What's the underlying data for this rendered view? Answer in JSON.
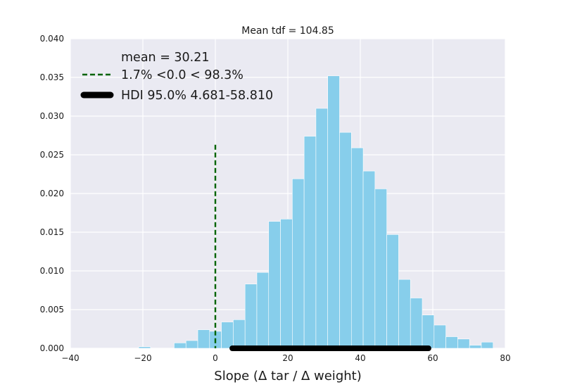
{
  "chart_data": {
    "type": "bar",
    "title": "Mean tdf = 104.85",
    "xlabel": "Slope (Δ tar  / Δ weight)",
    "ylabel": "",
    "xlim": [
      -40,
      80
    ],
    "ylim": [
      0,
      0.04
    ],
    "xticks": [
      "−40",
      "−20",
      "0",
      "20",
      "40",
      "60",
      "80"
    ],
    "xtick_values": [
      -40,
      -20,
      0,
      20,
      40,
      60,
      80
    ],
    "yticks": [
      "0.000",
      "0.005",
      "0.010",
      "0.015",
      "0.020",
      "0.025",
      "0.030",
      "0.035",
      "0.040"
    ],
    "ytick_values": [
      0,
      0.005,
      0.01,
      0.015,
      0.02,
      0.025,
      0.03,
      0.035,
      0.04
    ],
    "grid": true,
    "bin_width": 3.26,
    "bins": [
      {
        "x0": -21.15,
        "value": 0.0002
      },
      {
        "x0": -11.37,
        "value": 0.0007
      },
      {
        "x0": -8.11,
        "value": 0.001
      },
      {
        "x0": -4.85,
        "value": 0.0024
      },
      {
        "x0": -1.59,
        "value": 0.0022
      },
      {
        "x0": 1.67,
        "value": 0.0034
      },
      {
        "x0": 4.93,
        "value": 0.0037
      },
      {
        "x0": 8.19,
        "value": 0.0083
      },
      {
        "x0": 11.45,
        "value": 0.0098
      },
      {
        "x0": 14.71,
        "value": 0.0164
      },
      {
        "x0": 17.97,
        "value": 0.0167
      },
      {
        "x0": 21.23,
        "value": 0.0219
      },
      {
        "x0": 24.49,
        "value": 0.0274
      },
      {
        "x0": 27.75,
        "value": 0.031
      },
      {
        "x0": 31.01,
        "value": 0.0352
      },
      {
        "x0": 34.27,
        "value": 0.0279
      },
      {
        "x0": 37.53,
        "value": 0.0259
      },
      {
        "x0": 40.79,
        "value": 0.0229
      },
      {
        "x0": 44.05,
        "value": 0.0206
      },
      {
        "x0": 47.31,
        "value": 0.0147
      },
      {
        "x0": 50.57,
        "value": 0.0089
      },
      {
        "x0": 53.83,
        "value": 0.0065
      },
      {
        "x0": 57.09,
        "value": 0.0043
      },
      {
        "x0": 60.35,
        "value": 0.003
      },
      {
        "x0": 63.61,
        "value": 0.0015
      },
      {
        "x0": 66.87,
        "value": 0.0012
      },
      {
        "x0": 70.13,
        "value": 0.0004
      },
      {
        "x0": 73.39,
        "value": 0.0008
      }
    ],
    "reference_line": {
      "x": 0.0,
      "y_max": 0.0263,
      "color": "#006400",
      "style": "dashed"
    },
    "hdi_bar": {
      "x_start": 4.681,
      "x_end": 58.81,
      "y": 0.0,
      "color": "#000000"
    },
    "legend": {
      "placement": "top-left",
      "entries": [
        {
          "label": "mean = 30.21",
          "marker": "none"
        },
        {
          "label": "1.7% <0.0 < 98.3%",
          "marker": "dashed-green"
        },
        {
          "label": "HDI 95.0% 4.681-58.810",
          "marker": "thick-black"
        }
      ]
    },
    "colors": {
      "bar": "#87ceeb",
      "plot_bg": "#eaeaf2",
      "grid": "#ffffff",
      "ref_line": "#006400",
      "hdi": "#000000"
    }
  }
}
